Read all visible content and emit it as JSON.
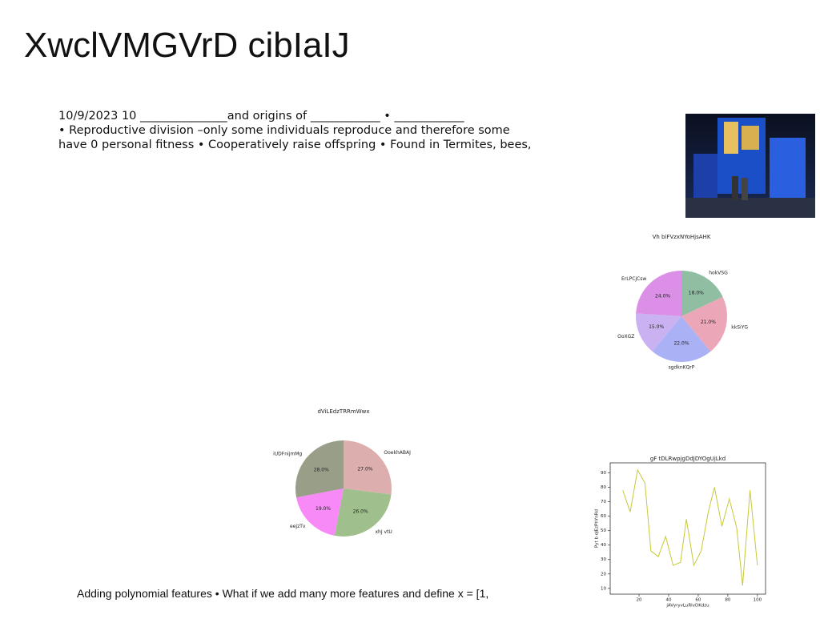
{
  "title": "XwclVMGVrD cibIaIJ",
  "body_lines": [
    "10/9/2023 10 _______________and origins of ____________ • ____________",
    "• Reproductive division –only some individuals reproduce and therefore some",
    "have 0 personal fitness • Cooperatively raise offspring • Found in Termites, bees,"
  ],
  "footer_text": "Adding polynomial features • What if we add many more features and define x = [1,",
  "charts": [
    {
      "type": "pie",
      "title": "Vh biFVzxNYoHjsAHK",
      "categories": [
        "hokVSG",
        "kkSiYG",
        "sgdknKQrP",
        "OoXGZ",
        "ErLPCjCsw"
      ],
      "values": [
        18,
        21,
        22,
        15,
        24
      ],
      "value_labels": [
        "18.0%",
        "21.0%",
        "22.0%",
        "15.0%",
        "24.0%"
      ],
      "colors": [
        "#8fbea3",
        "#eba6b7",
        "#aab1f4",
        "#c9b1f2",
        "#dc8fe7"
      ]
    },
    {
      "type": "pie",
      "title": "dViLEdzTRRmWwx",
      "categories": [
        "OoekhABAJ",
        "xhJ vtU",
        "eejzTv",
        "iUDFnijmMg"
      ],
      "values": [
        27,
        26,
        19,
        28
      ],
      "value_labels": [
        "27.0%",
        "26.0%",
        "19.0%",
        "28.0%"
      ],
      "colors": [
        "#dcaeae",
        "#9fc08d",
        "#f78af6",
        "#999e88"
      ]
    },
    {
      "type": "line",
      "title": "gF tDLRwpjgDdJDYOgUjLkd",
      "x_label": "jAVyryvLuRlvDKdzu",
      "y_label": "Pyt b oJEzPhYnRd",
      "x": [
        9,
        14,
        19,
        24,
        28,
        33,
        38,
        43,
        48,
        52,
        57,
        62,
        67,
        71,
        76,
        81,
        86,
        90,
        95,
        100
      ],
      "values": [
        78,
        63,
        92,
        83,
        36,
        32,
        46,
        26,
        28,
        58,
        26,
        36,
        64,
        80,
        53,
        72,
        52,
        12,
        78,
        26
      ],
      "color": "#c8c83a",
      "xlim": [
        0.5,
        105.5
      ],
      "ylim": [
        6,
        97
      ],
      "xticks": [
        20,
        40,
        60,
        80,
        100
      ],
      "yticks": [
        10,
        20,
        30,
        40,
        50,
        60,
        70,
        80,
        90
      ]
    }
  ]
}
